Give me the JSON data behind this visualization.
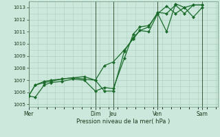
{
  "xlabel": "Pression niveau de la mer( hPa )",
  "background_color": "#cce8dc",
  "grid_color": "#aacfbe",
  "line_color": "#1a6b2a",
  "marker_color": "#1a6b2a",
  "ylim": [
    1004.8,
    1013.5
  ],
  "yticks": [
    1005,
    1006,
    1007,
    1008,
    1009,
    1010,
    1011,
    1012,
    1013
  ],
  "day_labels": [
    "Mer",
    "",
    "Dim",
    "Jeu",
    "",
    "Ven",
    "",
    "Sam"
  ],
  "day_positions": [
    0,
    1.5,
    3.0,
    3.8,
    5.0,
    5.8,
    7.0,
    7.8
  ],
  "vline_positions": [
    0,
    3.0,
    3.8,
    5.8,
    7.8
  ],
  "xlim": [
    0,
    8.5
  ],
  "series1_x": [
    0,
    0.3,
    0.7,
    1.0,
    1.5,
    2.0,
    2.5,
    3.0,
    3.4,
    3.8,
    4.3,
    4.7,
    5.0,
    5.4,
    5.8,
    6.2,
    6.6,
    7.0,
    7.4,
    7.8
  ],
  "series1_y": [
    1005.7,
    1005.6,
    1006.6,
    1006.8,
    1006.9,
    1007.1,
    1007.0,
    1006.1,
    1006.4,
    1006.3,
    1008.8,
    1010.8,
    1011.4,
    1011.5,
    1012.5,
    1013.1,
    1012.5,
    1013.0,
    1012.2,
    1013.0
  ],
  "series2_x": [
    0,
    0.3,
    0.7,
    1.0,
    1.5,
    2.0,
    2.5,
    3.0,
    3.4,
    3.8,
    4.3,
    4.7,
    5.0,
    5.4,
    5.8,
    6.2,
    6.6,
    7.0,
    7.4,
    7.8
  ],
  "series2_y": [
    1005.7,
    1006.6,
    1006.8,
    1006.9,
    1007.1,
    1007.2,
    1007.3,
    1007.0,
    1006.1,
    1006.1,
    1009.4,
    1010.5,
    1011.1,
    1011.0,
    1012.5,
    1011.0,
    1013.3,
    1013.0,
    1013.2,
    1013.2
  ],
  "series3_x": [
    0,
    0.3,
    0.7,
    1.0,
    1.5,
    2.0,
    2.5,
    3.0,
    3.4,
    3.8,
    4.3,
    4.7,
    5.0,
    5.4,
    5.8,
    6.2,
    6.6,
    7.0,
    7.4,
    7.8
  ],
  "series3_y": [
    1005.7,
    1006.6,
    1006.9,
    1007.0,
    1007.1,
    1007.2,
    1007.1,
    1007.0,
    1008.2,
    1008.5,
    1009.5,
    1010.4,
    1011.1,
    1011.4,
    1012.6,
    1012.5,
    1013.2,
    1012.5,
    1013.2,
    1013.2
  ]
}
